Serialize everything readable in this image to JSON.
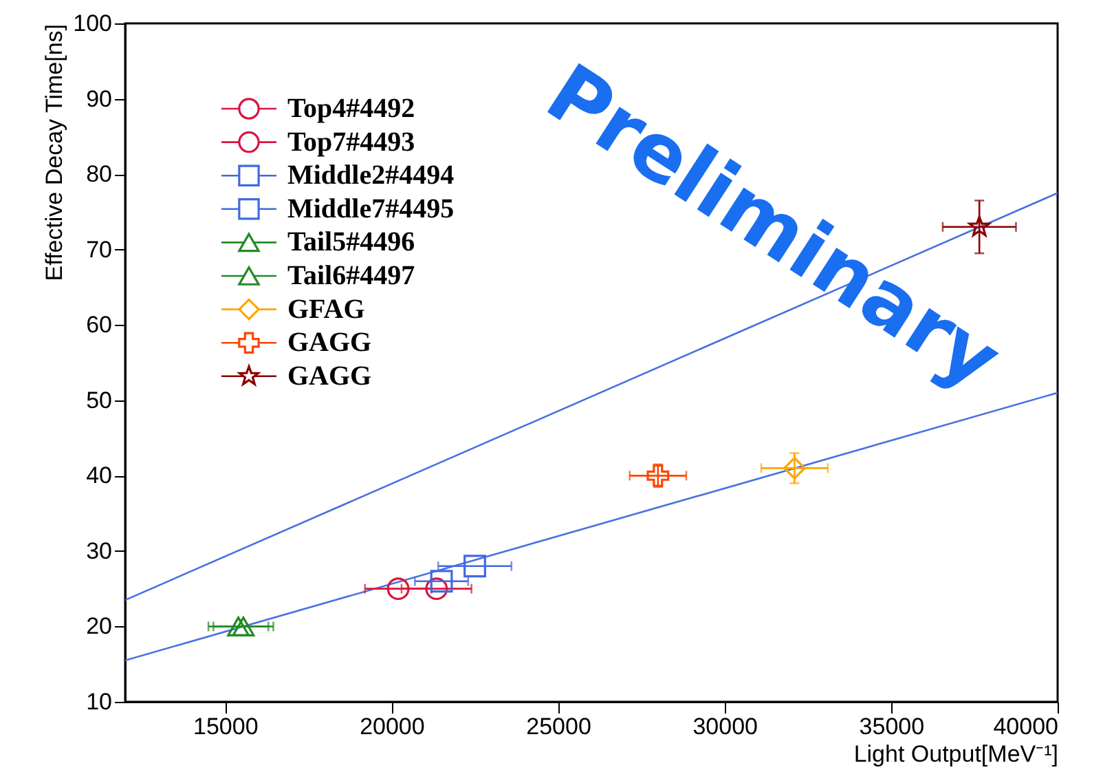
{
  "chart_data": {
    "type": "scatter",
    "xlabel": "Light Output[MeV⁻¹]",
    "ylabel": "Effective Decay Time[ns]",
    "xlim": [
      12000,
      40000
    ],
    "ylim": [
      10,
      100
    ],
    "xticks": [
      15000,
      20000,
      25000,
      30000,
      35000,
      40000
    ],
    "yticks": [
      10,
      20,
      30,
      40,
      50,
      60,
      70,
      80,
      90,
      100
    ],
    "grid": false,
    "legend": "top left",
    "annotations": [
      "Preliminary"
    ],
    "series": [
      {
        "name": "Top4#4492",
        "color": "#dc143c",
        "marker": "circle",
        "x": [
          21350
        ],
        "values": [
          25
        ],
        "xerrors": [
          1050
        ]
      },
      {
        "name": "Top7#4493",
        "color": "#dc143c",
        "marker": "circle",
        "x": [
          20200
        ],
        "values": [
          25
        ],
        "xerrors": [
          1000
        ]
      },
      {
        "name": "Middle2#4494",
        "color": "#4169e1",
        "marker": "square",
        "x": [
          21500
        ],
        "values": [
          26
        ],
        "xerrors": [
          800
        ]
      },
      {
        "name": "Middle7#4495",
        "color": "#4169e1",
        "marker": "square",
        "x": [
          22500
        ],
        "values": [
          28
        ],
        "xerrors": [
          1100
        ]
      },
      {
        "name": "Tail5#4496",
        "color": "#228b22",
        "marker": "triangle",
        "x": [
          15400
        ],
        "values": [
          20
        ],
        "xerrors": [
          900
        ]
      },
      {
        "name": "Tail6#4497",
        "color": "#228b22",
        "marker": "triangle",
        "x": [
          15550
        ],
        "values": [
          20
        ],
        "xerrors": [
          900
        ]
      },
      {
        "name": "GFAG",
        "color": "#ffa500",
        "marker": "diamond",
        "x": [
          32100
        ],
        "values": [
          41
        ],
        "xerrors": [
          1000
        ],
        "errors": [
          2
        ]
      },
      {
        "name": "GAGG",
        "color": "#ff4500",
        "marker": "cross",
        "x": [
          28000
        ],
        "values": [
          40
        ],
        "xerrors": [
          850
        ],
        "errors": [
          1.5
        ]
      },
      {
        "name": "GAGG",
        "color": "#8b0000",
        "marker": "star",
        "x": [
          37650
        ],
        "values": [
          73
        ],
        "xerrors": [
          1100
        ],
        "errors": [
          3.5
        ]
      },
      {
        "type": "line",
        "color": "#4a6fe3",
        "marker": "none",
        "x": [
          12000,
          40000
        ],
        "values": [
          23.5,
          77.5
        ]
      },
      {
        "type": "line",
        "color": "#4a6fe3",
        "marker": "none",
        "x": [
          12000,
          40000
        ],
        "values": [
          15.5,
          51
        ]
      }
    ]
  }
}
